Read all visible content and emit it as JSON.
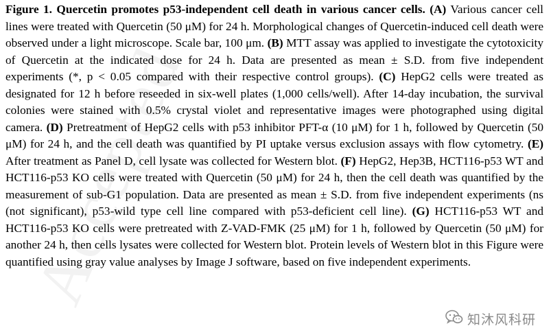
{
  "figure": {
    "label": "Figure 1.",
    "title": "Quercetin promotes p53-independent cell death in various cancer cells.",
    "panels": {
      "A": {
        "label": "(A)",
        "text": "Various cancer cell lines were treated with Quercetin (50 μM) for 24 h. Morphological changes of Quercetin-induced cell death were observed under a light microscope. Scale bar, 100 μm."
      },
      "B": {
        "label": "(B)",
        "text": "MTT assay was applied to investigate the cytotoxicity of Quercetin at the indicated dose for 24 h. Data are presented as mean ± S.D. from five independent experiments (*, p < 0.05 compared with their respective control groups)."
      },
      "C": {
        "label": "(C)",
        "text": "HepG2 cells were treated as designated for 12 h before reseeded in six-well plates (1,000 cells/well). After 14-day incubation, the survival colonies were stained with 0.5% crystal violet and representative images were photographed using digital camera."
      },
      "D": {
        "label": "(D)",
        "text": "Pretreatment of HepG2 cells with p53 inhibitor PFT-α (10 μM) for 1 h, followed by Quercetin (50 μM) for 24 h, and the cell death was quantified by PI uptake versus exclusion assays with flow cytometry."
      },
      "E": {
        "label": "(E)",
        "text": "After treatment as Panel D, cell lysate was collected for Western blot."
      },
      "F": {
        "label": "(F)",
        "text": "HepG2, Hep3B, HCT116-p53 WT and HCT116-p53 KO cells were treated with Quercetin (50 μM) for 24 h, then the cell death was quantified by the measurement of sub-G1 population. Data are presented as mean ± S.D. from five independent experiments (ns (not significant), p53-wild type cell line compared with p53-deficient cell line)."
      },
      "G": {
        "label": "(G)",
        "text": "HCT116-p53 WT and HCT116-p53 KO cells were pretreated with Z-VAD-FMK (25 μM) for 1 h, followed by Quercetin (50 μM) for another 24 h, then cells lysates were collected for Western blot. Protein levels of Western blot in this Figure were quantified using gray value analyses by Image J software, based on five independent experiments."
      }
    }
  },
  "watermark": {
    "text": "Accepted"
  },
  "wechat_badge": {
    "text": "知沐风科研",
    "icon": "wechat-icon",
    "color": "#8a8a8a"
  }
}
